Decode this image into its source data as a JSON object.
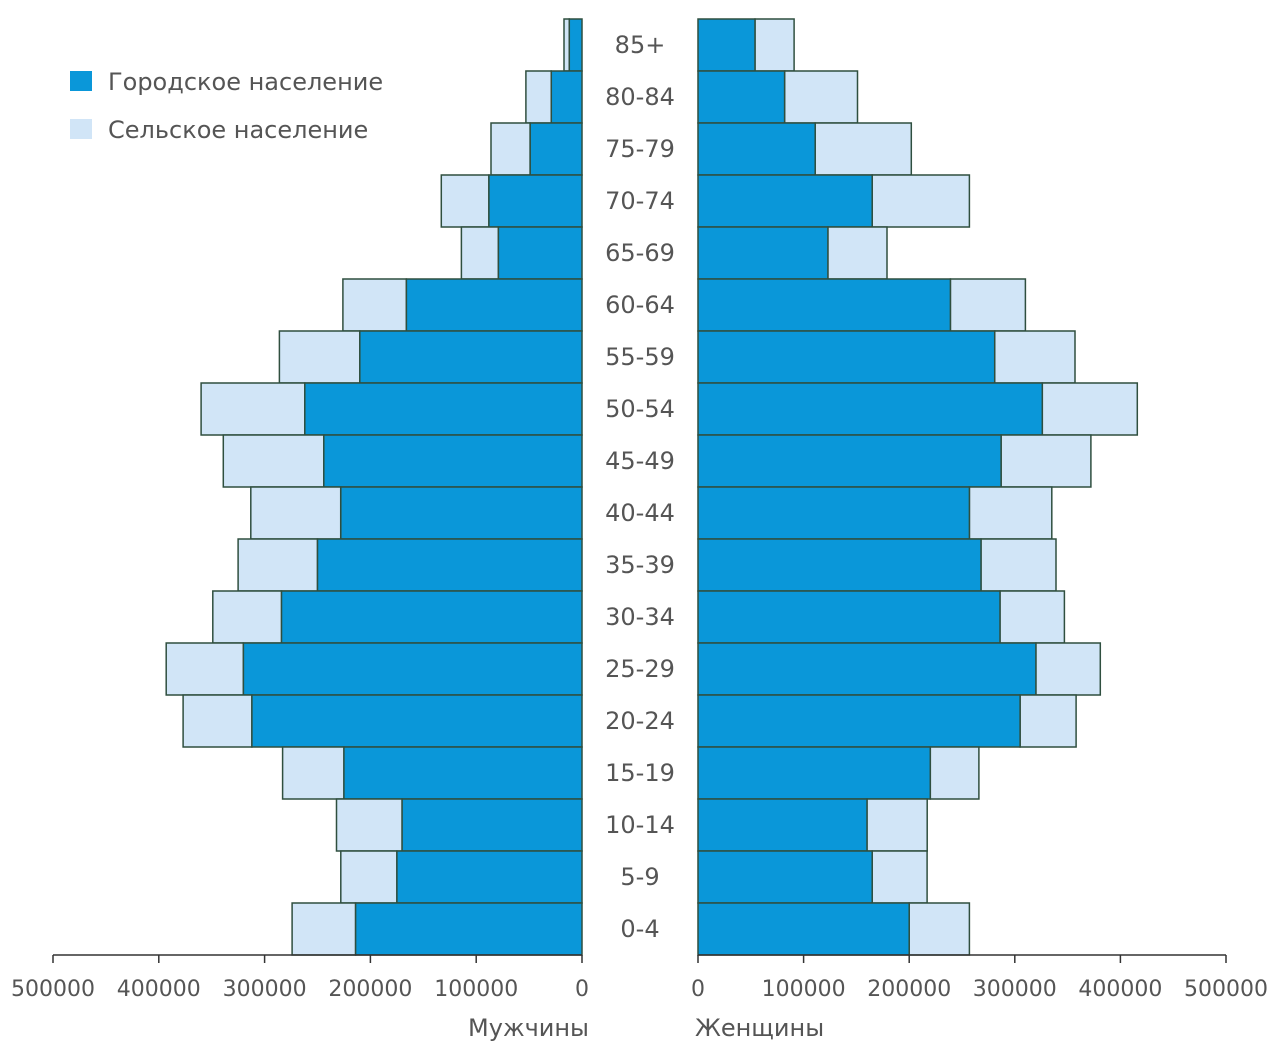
{
  "chart_data": {
    "type": "bar",
    "orientation": "horizontal-population-pyramid",
    "stacked": true,
    "categories": [
      "85+",
      "80-84",
      "75-79",
      "70-74",
      "65-69",
      "60-64",
      "55-59",
      "50-54",
      "45-49",
      "40-44",
      "35-39",
      "30-34",
      "25-29",
      "20-24",
      "15-19",
      "10-14",
      "5-9",
      "0-4"
    ],
    "legend": {
      "position": "top-left",
      "entries": [
        {
          "label": "Городское население",
          "color": "#0A97D9"
        },
        {
          "label": "Сельское население",
          "color": "#D1E5F7"
        }
      ]
    },
    "sides": [
      {
        "name": "Мужчины",
        "direction": "left",
        "xlim": [
          0,
          500000
        ],
        "ticks": [
          "500000",
          "400000",
          "300000",
          "200000",
          "100000",
          "0"
        ],
        "tick_values": [
          500000,
          400000,
          300000,
          200000,
          100000,
          0
        ],
        "series": [
          {
            "name": "Городское население",
            "values": [
              12000,
              29000,
              49000,
              88000,
              79000,
              166000,
              210000,
              262000,
              244000,
              228000,
              250000,
              284000,
              320000,
              312000,
              225000,
              170000,
              175000,
              214000
            ]
          },
          {
            "name": "Сельское население",
            "values": [
              5000,
              24000,
              37000,
              45000,
              35000,
              60000,
              76000,
              98000,
              95000,
              85000,
              75000,
              65000,
              73000,
              65000,
              58000,
              62000,
              53000,
              60000
            ]
          }
        ]
      },
      {
        "name": "Женщины",
        "direction": "right",
        "xlim": [
          0,
          500000
        ],
        "ticks": [
          "0",
          "100000",
          "200000",
          "300000",
          "400000",
          "500000"
        ],
        "tick_values": [
          0,
          100000,
          200000,
          300000,
          400000,
          500000
        ],
        "series": [
          {
            "name": "Городское население",
            "values": [
              54000,
              82000,
              111000,
              165000,
              123000,
              239000,
              281000,
              326000,
              287000,
              257000,
              268000,
              286000,
              320000,
              305000,
              220000,
              160000,
              165000,
              200000
            ]
          },
          {
            "name": "Сельское население",
            "values": [
              37000,
              69000,
              91000,
              92000,
              56000,
              71000,
              76000,
              90000,
              85000,
              78000,
              71000,
              61000,
              61000,
              53000,
              46000,
              57000,
              52000,
              57000
            ]
          }
        ]
      }
    ]
  },
  "colors": {
    "urban": "#0A97D9",
    "rural": "#D1E5F7",
    "bar_stroke": "#2F4F3F",
    "axis": "#333333",
    "text": "#555555"
  }
}
